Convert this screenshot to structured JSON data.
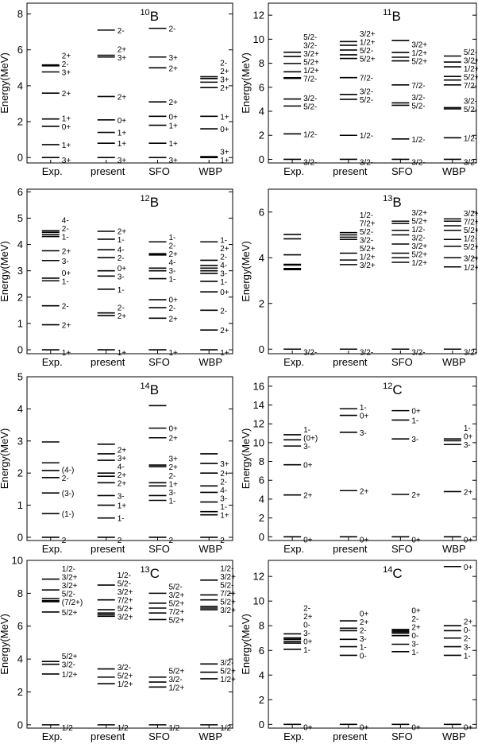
{
  "figure": {
    "ylabel": "Energy(MeV)"
  },
  "chart_data": [
    {
      "type": "level-scheme",
      "nucleus": {
        "mass": "10",
        "symbol": "B"
      },
      "ylabel": "Energy(MeV)",
      "ylim": [
        -0.3,
        8.6
      ],
      "yticks": [
        0,
        2,
        4,
        6,
        8
      ],
      "categories": [
        "Exp.",
        "present",
        "SFO",
        "WBP"
      ],
      "series": [
        {
          "name": "Exp.",
          "levels": [
            0,
            0.72,
            1.74,
            2.15,
            3.59,
            4.77,
            5.11,
            5.16
          ],
          "labels": [
            "3+",
            "1+",
            "0+",
            "1+",
            "2+",
            "3+",
            "2-",
            "2+"
          ]
        },
        {
          "name": "present",
          "levels": [
            0,
            0.8,
            1.4,
            2.1,
            3.4,
            5.6,
            5.7,
            7.1
          ],
          "labels": [
            "3+",
            "1+",
            "1+",
            "0+",
            "2+",
            "3+",
            "2+",
            "2-"
          ]
        },
        {
          "name": "SFO",
          "levels": [
            0,
            0.8,
            1.8,
            2.3,
            3.1,
            5.0,
            5.6,
            7.2
          ],
          "labels": [
            "3+",
            "1+",
            "1+",
            "0+",
            "2+",
            "2+",
            "3+",
            "2-"
          ]
        },
        {
          "name": "WBP",
          "levels": [
            0,
            0.05,
            1.6,
            2.3,
            3.9,
            4.2,
            4.4,
            4.5
          ],
          "labels": [
            "1+",
            "3+",
            "0+",
            "1+",
            "2+",
            "3+",
            "2+",
            "2-"
          ]
        }
      ]
    },
    {
      "type": "level-scheme",
      "nucleus": {
        "mass": "11",
        "symbol": "B"
      },
      "ylabel": "Energy(MeV)",
      "ylim": [
        -0.3,
        13.0
      ],
      "yticks": [
        0,
        2,
        4,
        6,
        8,
        10,
        12
      ],
      "categories": [
        "Exp.",
        "present",
        "SFO",
        "WBP"
      ],
      "series": [
        {
          "name": "Exp.",
          "levels": [
            0,
            2.12,
            4.44,
            5.02,
            6.74,
            6.79,
            7.29,
            7.98,
            8.56,
            8.92
          ],
          "labels": [
            "3/2-",
            "1/2-",
            "5/2-",
            "3/2-",
            "7/2-",
            "1/2+",
            "5/2+",
            "3/2+",
            "3/2-",
            "5/2-"
          ]
        },
        {
          "name": "present",
          "levels": [
            0,
            2.0,
            5.0,
            5.4,
            6.8,
            8.4,
            8.7,
            9.1,
            9.5,
            9.8
          ],
          "labels": [
            "3/2-",
            "1/2-",
            "5/2-",
            "3/2-",
            "7/2-",
            "5/2+",
            "5/2-",
            "1/2+",
            "3/2+"
          ]
        },
        {
          "name": "SFO",
          "levels": [
            0,
            1.7,
            4.5,
            4.7,
            6.2,
            8.2,
            8.5,
            8.9,
            9.9
          ],
          "labels": [
            "3/2-",
            "1/2-",
            "5/2-",
            "3/2-",
            "7/2-",
            "5/2+",
            "1/2+",
            "3/2+"
          ]
        },
        {
          "name": "WBP",
          "levels": [
            0,
            1.8,
            4.2,
            4.3,
            6.2,
            6.6,
            6.9,
            7.7,
            8.1,
            8.6
          ],
          "labels": [
            "3/2-",
            "1/2-",
            "5/2-",
            "3/2-",
            "7/2-",
            "5/2+",
            "1/2+",
            "3/2+",
            "5/2-"
          ]
        }
      ]
    },
    {
      "type": "level-scheme",
      "nucleus": {
        "mass": "12",
        "symbol": "B"
      },
      "ylabel": "Energy(MeV)",
      "ylim": [
        -0.15,
        6.1
      ],
      "yticks": [
        0,
        1,
        2,
        3,
        4,
        5,
        6
      ],
      "categories": [
        "Exp.",
        "present",
        "SFO",
        "WBP"
      ],
      "series": [
        {
          "name": "Exp.",
          "levels": [
            0,
            0.95,
            1.67,
            2.62,
            2.72,
            3.39,
            3.76,
            4.3,
            4.37,
            4.46,
            4.52
          ],
          "labels": [
            "1+",
            "2+",
            "2-",
            "1-",
            "0+",
            "3-",
            "2+",
            "1-",
            "2-",
            "4-"
          ]
        },
        {
          "name": "present",
          "levels": [
            0,
            1.3,
            1.4,
            2.3,
            2.8,
            3.0,
            3.5,
            3.8,
            4.2,
            4.5
          ],
          "labels": [
            "1+",
            "2+",
            "2-",
            "1-",
            "3-",
            "0+",
            "2-",
            "4-",
            "1-",
            "2+"
          ]
        },
        {
          "name": "SFO",
          "levels": [
            0,
            1.2,
            1.6,
            1.9,
            2.7,
            3.0,
            3.1,
            3.6,
            3.65,
            4.1
          ],
          "labels": [
            "1+",
            "2+",
            "2-",
            "0+",
            "1-",
            "3-",
            "4-",
            "2+",
            "2-",
            "1-"
          ]
        },
        {
          "name": "WBP",
          "levels": [
            0,
            0.75,
            1.5,
            2.2,
            2.6,
            2.9,
            3.0,
            3.1,
            3.2,
            3.4,
            4.1
          ],
          "labels": [
            "1+",
            "2+",
            "2-",
            "0+",
            "1-",
            "3-",
            "4-",
            "2-",
            "2+",
            "1-"
          ]
        }
      ]
    },
    {
      "type": "level-scheme",
      "nucleus": {
        "mass": "13",
        "symbol": "B"
      },
      "ylabel": "Energy(MeV)",
      "ylim": [
        -0.2,
        7.0
      ],
      "yticks": [
        0,
        2,
        4,
        6
      ],
      "categories": [
        "Exp.",
        "present",
        "SFO",
        "WBP"
      ],
      "series": [
        {
          "name": "Exp.",
          "levels": [
            0,
            3.48,
            3.53,
            3.68,
            3.71,
            4.13,
            4.83,
            5.02
          ],
          "labels": [
            "3/2-"
          ]
        },
        {
          "name": "present",
          "levels": [
            0,
            3.7,
            3.9,
            4.2,
            4.8,
            4.9,
            5.0,
            5.1
          ],
          "labels": [
            "3/2-",
            "3/2+",
            "1/2+",
            "5/2+",
            "3/2-",
            "5/2-",
            "7/2+",
            "1/2-"
          ]
        },
        {
          "name": "SFO",
          "levels": [
            0,
            3.8,
            4.0,
            4.2,
            4.6,
            5.0,
            5.2,
            5.5,
            5.6
          ],
          "labels": [
            "3/2-",
            "1/2+",
            "5/2+",
            "3/2+",
            "3/2-",
            "1/2-",
            "5/2+",
            "3/2+"
          ]
        },
        {
          "name": "WBP",
          "levels": [
            0,
            3.6,
            4.0,
            4.5,
            4.8,
            5.2,
            5.4,
            5.6,
            5.7
          ],
          "labels": [
            "3/2-",
            "1/2+",
            "3/2+",
            "5/2+",
            "1/2-",
            "5/2+",
            "7/2+",
            "3/2+"
          ]
        }
      ]
    },
    {
      "type": "level-scheme",
      "nucleus": {
        "mass": "14",
        "symbol": "B"
      },
      "ylabel": "Energy(MeV)",
      "ylim": [
        -0.1,
        5.0
      ],
      "yticks": [
        0,
        1,
        2,
        3,
        4,
        5
      ],
      "categories": [
        "Exp.",
        "present",
        "SFO",
        "WBP"
      ],
      "series": [
        {
          "name": "Exp.",
          "levels": [
            0,
            0.74,
            1.38,
            1.86,
            2.08,
            2.32,
            2.97
          ],
          "labels": [
            "2-",
            "(1-)",
            "(3-)",
            "2-",
            "(4-)"
          ]
        },
        {
          "name": "present",
          "levels": [
            0,
            0.6,
            1.0,
            1.3,
            1.7,
            1.9,
            2.0,
            2.4,
            2.6,
            2.9
          ],
          "labels": [
            "2-",
            "1-",
            "1+",
            "3-",
            "2+",
            "2+",
            "4-",
            "3+",
            "2+"
          ]
        },
        {
          "name": "SFO",
          "levels": [
            0,
            1.15,
            1.3,
            1.6,
            1.7,
            2.2,
            2.25,
            3.1,
            3.4,
            4.1
          ],
          "labels": [
            "2-",
            "1-",
            "3-",
            "1+",
            "2-",
            "2+",
            "3+",
            "2+",
            "0+"
          ]
        },
        {
          "name": "WBP",
          "levels": [
            0,
            0.7,
            0.8,
            1.1,
            1.4,
            1.6,
            2.0,
            2.3,
            2.6
          ],
          "labels": [
            "2-",
            "1+",
            "1-",
            "3-",
            "4-",
            "2-",
            "2+",
            "3+"
          ]
        }
      ]
    },
    {
      "type": "level-scheme",
      "nucleus": {
        "mass": "12",
        "symbol": "C"
      },
      "ylabel": "Energy(MeV)",
      "ylim": [
        -0.4,
        17.0
      ],
      "yticks": [
        0,
        2,
        4,
        6,
        8,
        10,
        12,
        14,
        16
      ],
      "categories": [
        "Exp.",
        "present",
        "SFO",
        "WBP"
      ],
      "series": [
        {
          "name": "Exp.",
          "levels": [
            0,
            4.44,
            7.65,
            9.64,
            10.3,
            10.84
          ],
          "labels": [
            "0+",
            "2+",
            "0+",
            "3-",
            "(0+)",
            "1-"
          ]
        },
        {
          "name": "present",
          "levels": [
            0,
            4.9,
            11.1,
            12.9,
            13.6
          ],
          "labels": [
            "0+",
            "2+",
            "3-",
            "0+",
            "1-"
          ]
        },
        {
          "name": "SFO",
          "levels": [
            0,
            4.5,
            10.4,
            12.4,
            13.4
          ],
          "labels": [
            "0+",
            "2+",
            "3-",
            "1-",
            "0+"
          ]
        },
        {
          "name": "WBP",
          "levels": [
            0,
            4.8,
            9.8,
            10.2,
            10.4
          ],
          "labels": [
            "0+",
            "2+",
            "3-",
            "0+",
            "1-"
          ]
        }
      ]
    },
    {
      "type": "level-scheme",
      "nucleus": {
        "mass": "13",
        "symbol": "C"
      },
      "ylabel": "Energy(MeV)",
      "ylim": [
        -0.2,
        10.0
      ],
      "yticks": [
        0,
        2,
        4,
        6,
        8,
        10
      ],
      "categories": [
        "Exp.",
        "present",
        "SFO",
        "WBP"
      ],
      "series": [
        {
          "name": "Exp.",
          "levels": [
            0,
            3.09,
            3.68,
            3.85,
            6.86,
            7.49,
            7.55,
            7.68,
            8.2,
            8.86
          ],
          "labels": [
            "1/2-",
            "1/2+",
            "3/2-",
            "5/2+",
            "5/2+",
            "(7/2+)",
            "5/2-",
            "3/2+",
            "3/2+",
            "1/2-"
          ]
        },
        {
          "name": "present",
          "levels": [
            0,
            2.5,
            2.9,
            3.4,
            6.6,
            6.7,
            6.8,
            7.0,
            7.6,
            8.5
          ],
          "labels": [
            "1/2-",
            "1/2+",
            "5/2+",
            "3/2-",
            "3/2+",
            "5/2+",
            "7/2+",
            "3/2+",
            "5/2-",
            "1/2-"
          ]
        },
        {
          "name": "SFO",
          "levels": [
            0,
            2.3,
            2.6,
            2.9,
            6.4,
            6.8,
            7.1,
            7.4,
            8.0
          ],
          "labels": [
            "1/2-",
            "1/2+",
            "3/2-",
            "5/2+",
            "5/2+",
            "7/2+",
            "5/2+",
            "3/2+",
            "5/2-"
          ]
        },
        {
          "name": "WBP",
          "levels": [
            0,
            2.8,
            3.2,
            3.7,
            7.0,
            7.1,
            7.2,
            7.6,
            7.9,
            8.8
          ],
          "labels": [
            "1/2-",
            "1/2+",
            "5/2+",
            "3/2-",
            "3/2+",
            "5/2+",
            "7/2+",
            "5/2-",
            "3/2+",
            "1/2-"
          ]
        }
      ]
    },
    {
      "type": "level-scheme",
      "nucleus": {
        "mass": "14",
        "symbol": "C"
      },
      "ylabel": "Energy(MeV)",
      "ylim": [
        -0.3,
        13.3
      ],
      "yticks": [
        0,
        2,
        4,
        6,
        8,
        10,
        12
      ],
      "categories": [
        "Exp.",
        "present",
        "SFO",
        "WBP"
      ],
      "series": [
        {
          "name": "Exp.",
          "levels": [
            0,
            6.09,
            6.59,
            6.73,
            6.9,
            7.01,
            7.34
          ],
          "labels": [
            "0+",
            "1-",
            "0+",
            "3-",
            "0-",
            "2+",
            "2-"
          ]
        },
        {
          "name": "present",
          "levels": [
            0,
            5.6,
            6.3,
            6.9,
            7.6,
            7.8,
            8.4
          ],
          "labels": [
            "0+",
            "0-",
            "1-",
            "3-",
            "2-",
            "2+",
            "0+"
          ]
        },
        {
          "name": "SFO",
          "levels": [
            0,
            5.9,
            6.5,
            7.2,
            7.4,
            7.5,
            7.6,
            7.7
          ],
          "labels": [
            "0+",
            "1-",
            "3-",
            "0-",
            "2+",
            "2-",
            "0+"
          ]
        },
        {
          "name": "WBP",
          "levels": [
            0,
            5.6,
            6.3,
            7.0,
            7.6,
            8.0,
            12.8
          ],
          "labels": [
            "0+",
            "1-",
            "3-",
            "2-",
            "0-",
            "2+",
            "0+"
          ]
        }
      ]
    }
  ]
}
